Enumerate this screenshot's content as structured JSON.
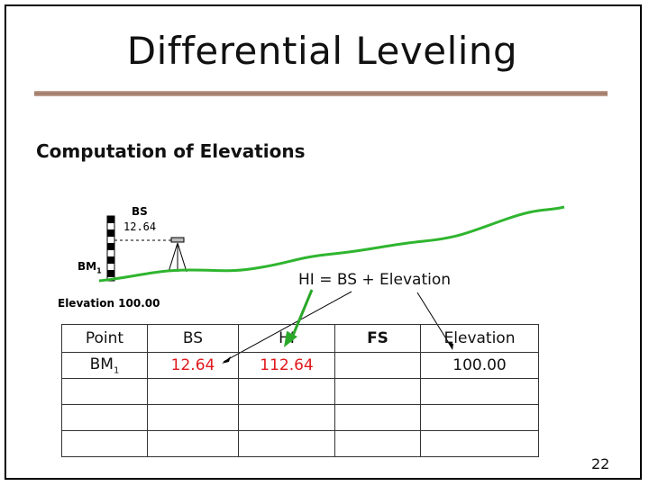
{
  "slide": {
    "title": "Differential Leveling",
    "subtitle": "Computation of Elevations",
    "page_number": "22"
  },
  "diagram": {
    "bs_label": "BS",
    "bs_value": "12.64",
    "bm_label": "BM",
    "bm_subscript": "1",
    "elevation_label": "Elevation 100.00",
    "formula": "HI = BS + Elevation"
  },
  "table": {
    "headers": {
      "point": "Point",
      "bs": "BS",
      "hi": "HI",
      "fs": "FS",
      "elevation": "Elevation"
    },
    "row1": {
      "point": "BM",
      "point_sub": "1",
      "bs": "12.64",
      "hi": "112.64",
      "fs": "",
      "elevation": "100.00"
    }
  },
  "colors": {
    "ground": "#2fb52f",
    "value_red": "#e0191b",
    "arrow_green": "#2aa82a"
  }
}
